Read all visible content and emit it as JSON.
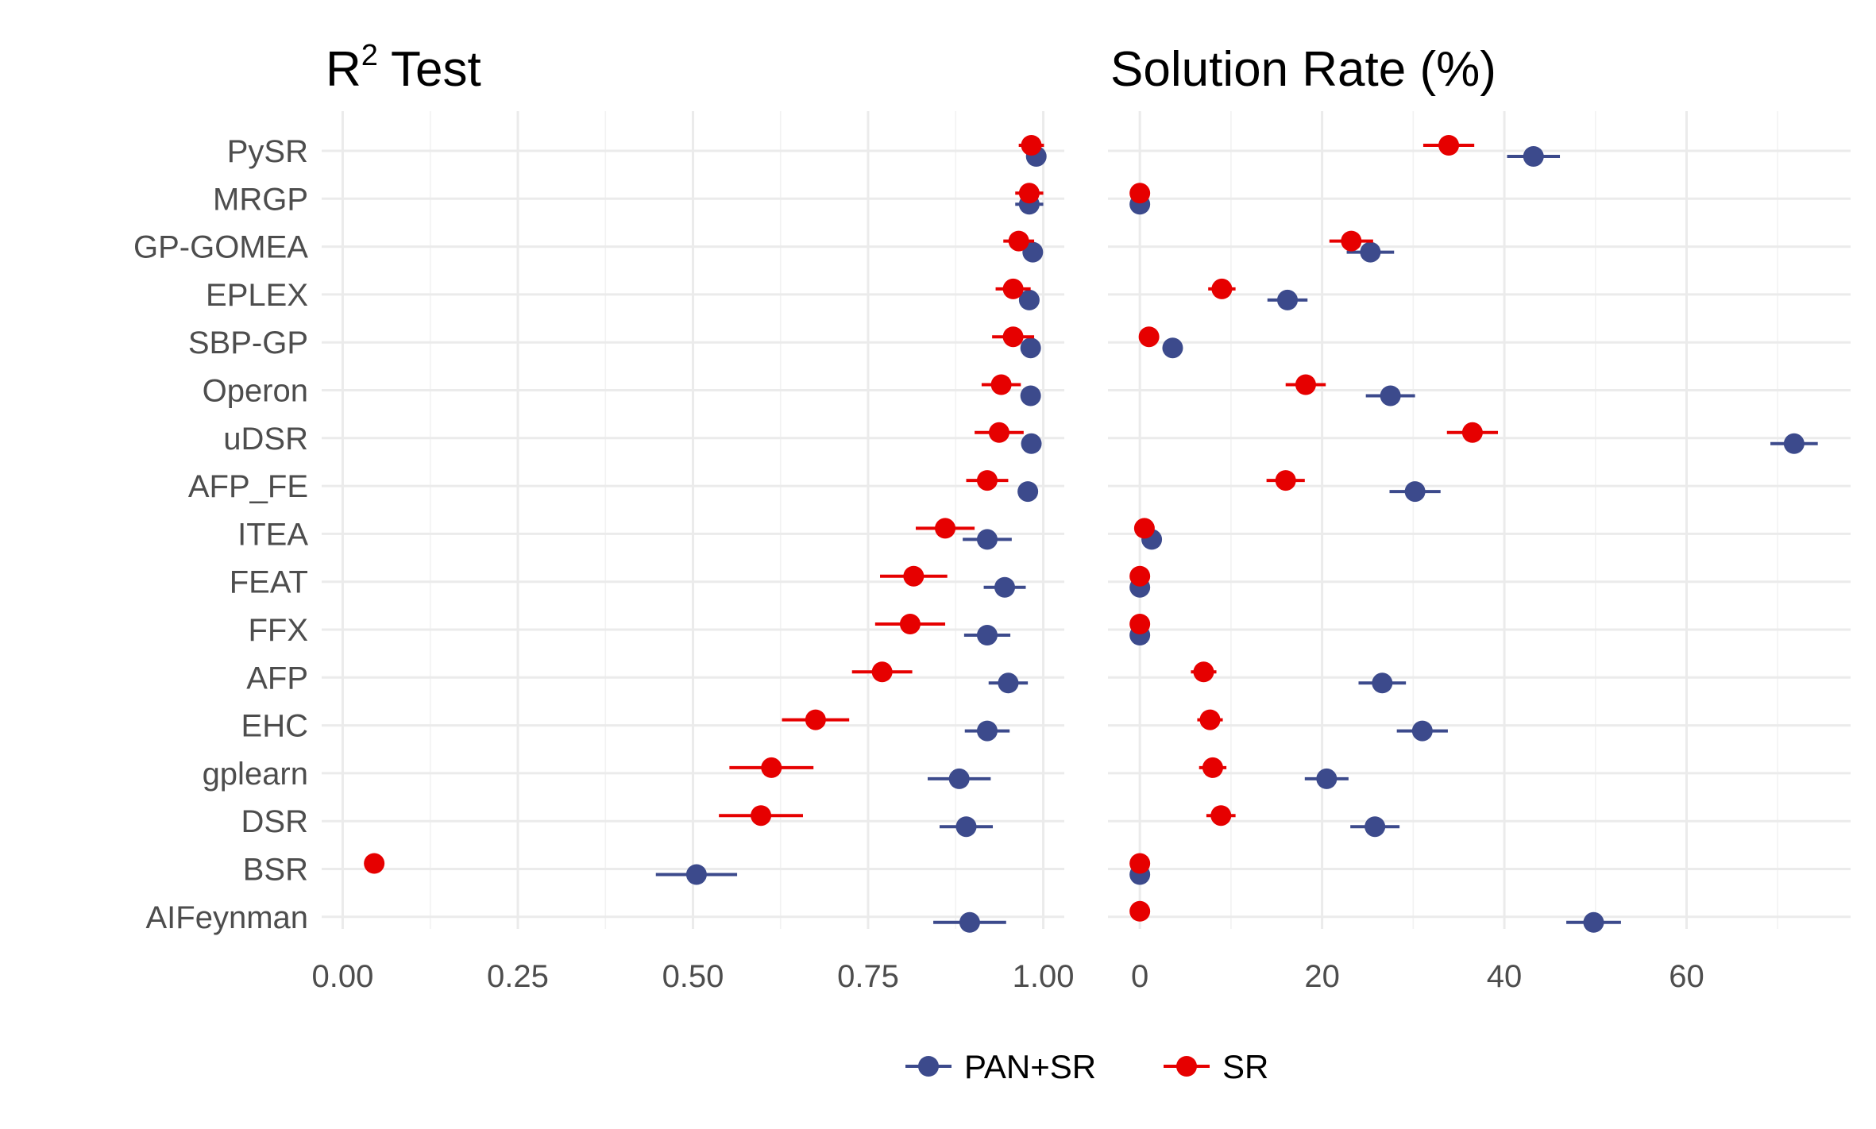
{
  "chart_data": [
    {
      "type": "scatter",
      "title": "R",
      "title_superscript": "2",
      "title_suffix": " Test",
      "xlim": [
        -0.03,
        1.03
      ],
      "x_ticks": [
        0.0,
        0.25,
        0.5,
        0.75,
        1.0
      ],
      "x_tick_labels": [
        "0.00",
        "0.25",
        "0.50",
        "0.75",
        "1.00"
      ],
      "grid": true,
      "categories": [
        "PySR",
        "MRGP",
        "GP-GOMEA",
        "EPLEX",
        "SBP-GP",
        "Operon",
        "uDSR",
        "AFP_FE",
        "ITEA",
        "FEAT",
        "FFX",
        "AFP",
        "EHC",
        "gplearn",
        "DSR",
        "BSR",
        "AIFeynman"
      ],
      "series": [
        {
          "name": "PAN+SR",
          "color": "#3c4a8c",
          "values": [
            0.99,
            0.98,
            0.985,
            0.98,
            0.982,
            0.982,
            0.983,
            0.978,
            0.92,
            0.945,
            0.92,
            0.95,
            0.92,
            0.88,
            0.89,
            0.505,
            0.895
          ],
          "errors": [
            0.003,
            0.02,
            0.01,
            0.01,
            0.01,
            0.008,
            0.012,
            0.012,
            0.035,
            0.03,
            0.033,
            0.028,
            0.032,
            0.045,
            0.038,
            0.058,
            0.052
          ]
        },
        {
          "name": "SR",
          "color": "#e60000",
          "values": [
            0.983,
            0.98,
            0.965,
            0.957,
            0.957,
            0.94,
            0.937,
            0.92,
            0.86,
            0.815,
            0.81,
            0.77,
            0.675,
            0.612,
            0.597,
            0.045,
            null
          ],
          "errors": [
            0.018,
            0.02,
            0.022,
            0.025,
            0.03,
            0.028,
            0.035,
            0.03,
            0.042,
            0.048,
            0.05,
            0.043,
            0.048,
            0.06,
            0.06,
            0.0,
            null
          ]
        }
      ]
    },
    {
      "type": "scatter",
      "title": "Solution Rate (%)",
      "xlim": [
        -3.5,
        78
      ],
      "x_ticks": [
        0,
        20,
        40,
        60
      ],
      "x_tick_labels": [
        "0",
        "20",
        "40",
        "60"
      ],
      "grid": true,
      "categories": [
        "PySR",
        "MRGP",
        "GP-GOMEA",
        "EPLEX",
        "SBP-GP",
        "Operon",
        "uDSR",
        "AFP_FE",
        "ITEA",
        "FEAT",
        "FFX",
        "AFP",
        "EHC",
        "gplearn",
        "DSR",
        "BSR",
        "AIFeynman"
      ],
      "series": [
        {
          "name": "PAN+SR",
          "color": "#3c4a8c",
          "values": [
            43.2,
            0.0,
            25.3,
            16.2,
            3.6,
            27.5,
            71.8,
            30.2,
            1.3,
            0.0,
            0.0,
            26.6,
            31.0,
            20.5,
            25.8,
            0.0,
            49.8
          ],
          "errors": [
            2.9,
            0.0,
            2.6,
            2.2,
            0.0,
            2.7,
            2.6,
            2.8,
            0.0,
            0.0,
            0.0,
            2.6,
            2.8,
            2.4,
            2.7,
            0.0,
            3.0
          ]
        },
        {
          "name": "SR",
          "color": "#e60000",
          "values": [
            33.9,
            0.0,
            23.2,
            9.0,
            1.0,
            18.2,
            36.5,
            16.0,
            0.5,
            0.0,
            0.0,
            7.0,
            7.7,
            8.0,
            8.9,
            0.0,
            0.0
          ],
          "errors": [
            2.8,
            0.0,
            2.4,
            1.5,
            0.0,
            2.2,
            2.8,
            2.1,
            0.0,
            0.0,
            0.0,
            1.4,
            1.4,
            1.5,
            1.6,
            0.0,
            0.0
          ]
        }
      ]
    }
  ],
  "legend": {
    "position": "bottom",
    "items": [
      {
        "label": "PAN+SR",
        "color": "#3c4a8c"
      },
      {
        "label": "SR",
        "color": "#e60000"
      }
    ]
  }
}
